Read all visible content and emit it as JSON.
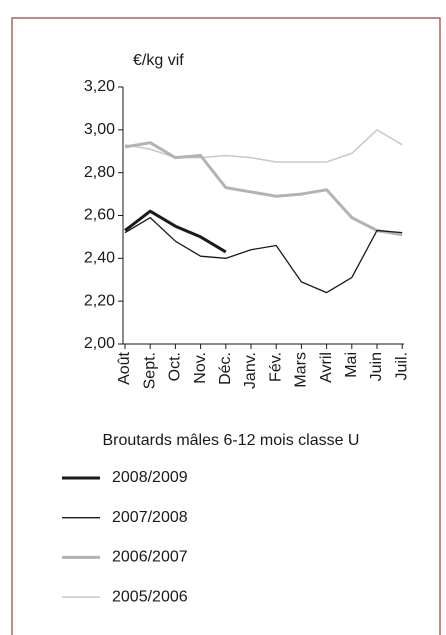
{
  "chart_data": {
    "type": "line",
    "y_label": "€/kg vif",
    "subtitle": "Broutards mâles 6-12 mois classe U",
    "categories": [
      "Août",
      "Sept.",
      "Oct.",
      "Nov.",
      "Déc.",
      "Janv.",
      "Fév.",
      "Mars",
      "Avril",
      "Mai",
      "Juin",
      "Juil."
    ],
    "ylim": [
      2.0,
      3.2
    ],
    "yticks": [
      {
        "value": 2.0,
        "label": "2,00"
      },
      {
        "value": 2.2,
        "label": "2,20"
      },
      {
        "value": 2.4,
        "label": "2,40"
      },
      {
        "value": 2.6,
        "label": "2,60"
      },
      {
        "value": 2.8,
        "label": "2,80"
      },
      {
        "value": 3.0,
        "label": "3,00"
      },
      {
        "value": 3.2,
        "label": "3,20"
      }
    ],
    "series": [
      {
        "name": "2008/2009",
        "color": "#1a1a1a",
        "width": 3,
        "values": [
          2.53,
          2.62,
          2.55,
          2.5,
          2.43,
          null,
          null,
          null,
          null,
          null,
          null,
          null
        ]
      },
      {
        "name": "2007/2008",
        "color": "#1a1a1a",
        "width": 1.3,
        "values": [
          2.52,
          2.59,
          2.48,
          2.41,
          2.4,
          2.44,
          2.46,
          2.29,
          2.24,
          2.31,
          2.53,
          2.52
        ]
      },
      {
        "name": "2006/2007",
        "color": "#b3b3b3",
        "width": 3,
        "values": [
          2.92,
          2.94,
          2.87,
          2.88,
          2.73,
          2.71,
          2.69,
          2.7,
          2.72,
          2.59,
          2.53,
          2.51
        ]
      },
      {
        "name": "2005/2006",
        "color": "#c8c8c8",
        "width": 1.5,
        "values": [
          2.93,
          2.91,
          2.87,
          2.87,
          2.88,
          2.87,
          2.85,
          2.85,
          2.85,
          2.89,
          3.0,
          2.93
        ]
      }
    ]
  }
}
